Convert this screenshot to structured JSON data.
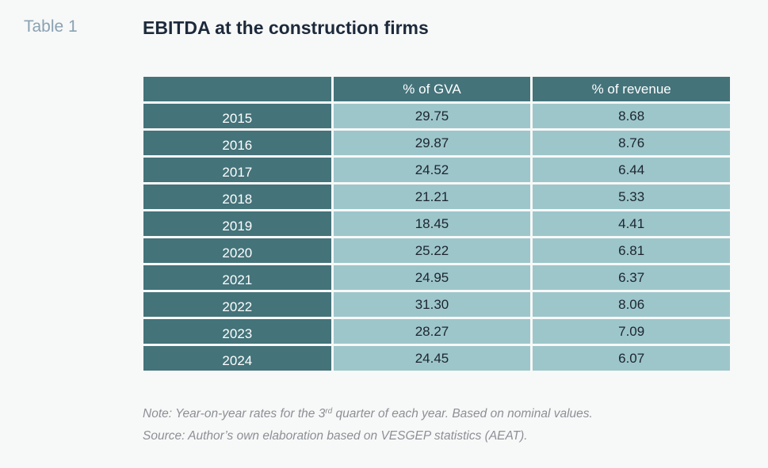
{
  "header": {
    "label": "Table 1",
    "title": "EBITDA at the construction firms"
  },
  "table": {
    "columns": [
      "",
      "% of GVA",
      "% of revenue"
    ],
    "rows": [
      {
        "year": "2015",
        "gva": "29.75",
        "revenue": "8.68"
      },
      {
        "year": "2016",
        "gva": "29.87",
        "revenue": "8.76"
      },
      {
        "year": "2017",
        "gva": "24.52",
        "revenue": "6.44"
      },
      {
        "year": "2018",
        "gva": "21.21",
        "revenue": "5.33"
      },
      {
        "year": "2019",
        "gva": "18.45",
        "revenue": "4.41"
      },
      {
        "year": "2020",
        "gva": "25.22",
        "revenue": "6.81"
      },
      {
        "year": "2021",
        "gva": "24.95",
        "revenue": "6.37"
      },
      {
        "year": "2022",
        "gva": "31.30",
        "revenue": "8.06"
      },
      {
        "year": "2023",
        "gva": "28.27",
        "revenue": "7.09"
      },
      {
        "year": "2024",
        "gva": "24.45",
        "revenue": "6.07"
      }
    ]
  },
  "notes": {
    "note_prefix": "Note: Year-on-year rates for the 3",
    "note_sup": "rd",
    "note_suffix": " quarter of each year. Based on nominal values.",
    "source": "Source: Author’s own elaboration based on VESGEP statistics (AEAT)."
  },
  "colors": {
    "header_cell": "#44737a",
    "value_cell": "#9dc6ca",
    "label": "#8aa2b2",
    "title": "#1c2a3b"
  }
}
